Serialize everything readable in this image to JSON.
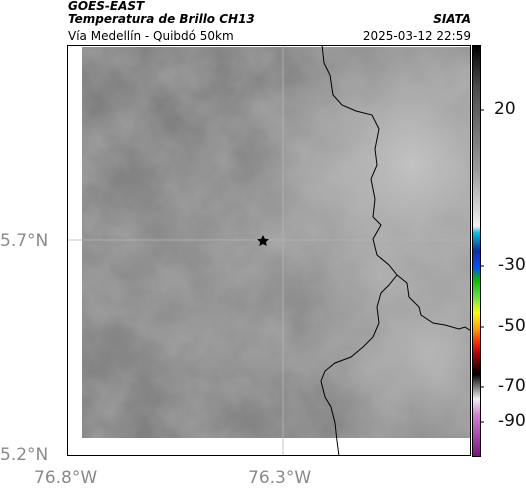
{
  "header": {
    "satellite": "GOES-EAST",
    "product": "Temperatura de Brillo CH13",
    "region": "Vía Medellín - Quibdó 50km",
    "brand": "SIATA",
    "datetime": "2025-03-12 22:59"
  },
  "map": {
    "lat_ticks": [
      "5.7°N",
      "5.2°N"
    ],
    "lon_ticks": [
      "76.8°W",
      "76.3°W"
    ],
    "marker": "star-marker"
  },
  "colorbar": {
    "tick_labels": [
      "20",
      "-30",
      "-50",
      "-70",
      "-90"
    ]
  },
  "colors": {
    "background": "#ffffff",
    "cloud_gray": "#8a8a8a",
    "border_line": "#000000"
  }
}
